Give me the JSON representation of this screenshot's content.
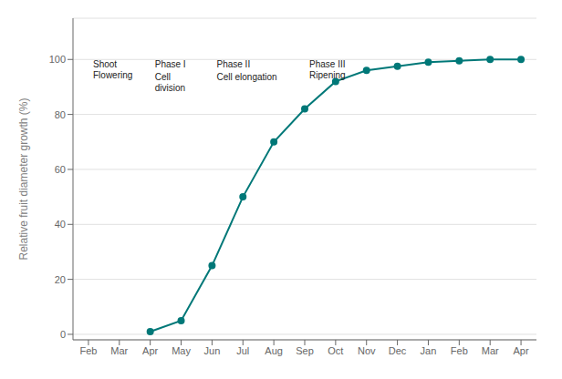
{
  "chart_data": {
    "type": "line",
    "categories": [
      "Feb",
      "Mar",
      "Apr",
      "May",
      "Jun",
      "Jul",
      "Aug",
      "Sep",
      "Oct",
      "Nov",
      "Dec",
      "Jan",
      "Feb",
      "Mar",
      "Apr"
    ],
    "values": [
      null,
      null,
      1,
      5,
      25,
      50,
      70,
      82,
      92,
      96,
      97.5,
      99,
      99.5,
      100,
      100
    ],
    "color": "#007878",
    "marker": "circle",
    "ylabel": "Relative fruit diameter growth (%)",
    "ylim": [
      -2,
      115
    ],
    "yticks": [
      0,
      20,
      40,
      60,
      80,
      100
    ],
    "grid": true,
    "annotations": [
      {
        "text": "Shoot\nFlowering",
        "x": 0.15,
        "y": 100
      },
      {
        "text": "Phase I",
        "x": 2.15,
        "y": 100
      },
      {
        "text": "Cell\ndivision",
        "x": 2.15,
        "y": 95.5
      },
      {
        "text": "Phase II",
        "x": 4.15,
        "y": 100
      },
      {
        "text": "Cell elongation",
        "x": 4.15,
        "y": 95.5
      },
      {
        "text": "Phase III",
        "x": 7.15,
        "y": 100
      },
      {
        "text": "Ripening",
        "x": 7.15,
        "y": 96
      }
    ]
  }
}
